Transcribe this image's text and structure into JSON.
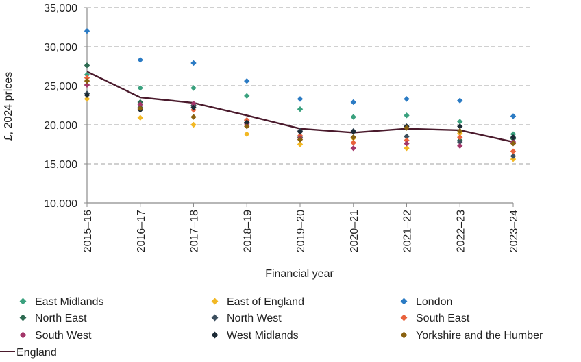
{
  "chart_data": {
    "type": "scatter",
    "xlabel": "Financial year",
    "ylabel": "£, 2024 prices",
    "categories": [
      "2015–16",
      "2016–17",
      "2017–18",
      "2018–19",
      "2019–20",
      "2020–21",
      "2021–22",
      "2022–23",
      "2023–24"
    ],
    "ylim": [
      10000,
      35000
    ],
    "yticks": [
      "10,000",
      "15,000",
      "20,000",
      "25,000",
      "30,000",
      "35,000"
    ],
    "yticks_values": [
      10000,
      15000,
      20000,
      25000,
      30000,
      35000
    ],
    "grid": true,
    "legend_position": "bottom",
    "series": [
      {
        "name": "East Midlands",
        "color": "#3aa17e",
        "values": [
          26400,
          24700,
          24700,
          23700,
          22000,
          21000,
          21200,
          20400,
          18800
        ]
      },
      {
        "name": "East of England",
        "color": "#f2b824",
        "values": [
          23300,
          20900,
          20000,
          18800,
          17500,
          18300,
          17000,
          18900,
          15600
        ]
      },
      {
        "name": "London",
        "color": "#2b7bc4",
        "values": [
          32000,
          28300,
          27900,
          25600,
          23300,
          22900,
          23300,
          23100,
          21100
        ]
      },
      {
        "name": "North East",
        "color": "#2e6b52",
        "values": [
          27600,
          22900,
          22500,
          20300,
          18400,
          18400,
          18500,
          18000,
          18200
        ]
      },
      {
        "name": "North West",
        "color": "#3c4f5e",
        "values": [
          24000,
          22200,
          22400,
          20600,
          19200,
          19200,
          18500,
          17800,
          16000
        ]
      },
      {
        "name": "South East",
        "color": "#e9623c",
        "values": [
          26000,
          22000,
          21900,
          20600,
          18600,
          17700,
          18000,
          18400,
          16600
        ]
      },
      {
        "name": "South West",
        "color": "#a3366a",
        "values": [
          25100,
          22600,
          22700,
          20100,
          18300,
          17000,
          17600,
          17300,
          17800
        ]
      },
      {
        "name": "West Midlands",
        "color": "#1c2b36",
        "values": [
          23800,
          21900,
          22200,
          20300,
          19100,
          19100,
          19800,
          19800,
          18400
        ]
      },
      {
        "name": "Yorkshire and the Humber",
        "color": "#8a6210",
        "values": [
          25600,
          22100,
          21000,
          19800,
          18100,
          18400,
          19600,
          19200,
          17600
        ]
      }
    ],
    "line_series": {
      "name": "England",
      "color": "#4a1a2c",
      "values": [
        26800,
        23500,
        22800,
        21200,
        19500,
        19000,
        19500,
        19300,
        17800
      ]
    }
  }
}
